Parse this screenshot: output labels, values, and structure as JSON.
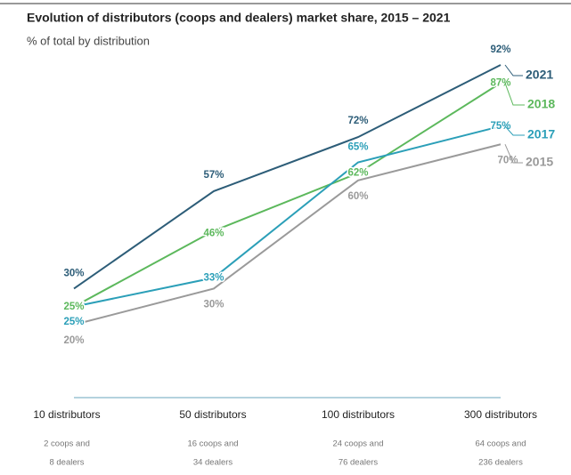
{
  "chart_data": {
    "type": "line",
    "title": "Evolution of distributors (coops and dealers) market share, 2015 – 2021",
    "subtitle": "% of total by distribution",
    "categories": [
      "10 distributors",
      "50 distributors",
      "100 distributors",
      "300 distributors"
    ],
    "sublabels": [
      [
        "2 coops and",
        "8 dealers"
      ],
      [
        "16 coops and",
        "34 dealers"
      ],
      [
        "24 coops and",
        "76 dealers"
      ],
      [
        "64 coops and",
        "236 dealers"
      ]
    ],
    "series": [
      {
        "name": "2021",
        "color": "#2d5d78",
        "values": [
          30,
          57,
          72,
          92
        ],
        "value_labels": [
          "30%",
          "57%",
          "72%",
          "92%"
        ]
      },
      {
        "name": "2018",
        "color": "#5cb85c",
        "values": [
          25,
          46,
          62,
          87
        ],
        "value_labels": [
          "25%",
          "46%",
          "62%",
          "87%"
        ]
      },
      {
        "name": "2017",
        "color": "#2b9fb8",
        "values": [
          25,
          33,
          65,
          75
        ],
        "value_labels": [
          "25%",
          "33%",
          "65%",
          "75%"
        ]
      },
      {
        "name": "2015",
        "color": "#9a9a9a",
        "values": [
          20,
          30,
          60,
          70
        ],
        "value_labels": [
          "20%",
          "30%",
          "60%",
          "70%"
        ]
      }
    ]
  }
}
